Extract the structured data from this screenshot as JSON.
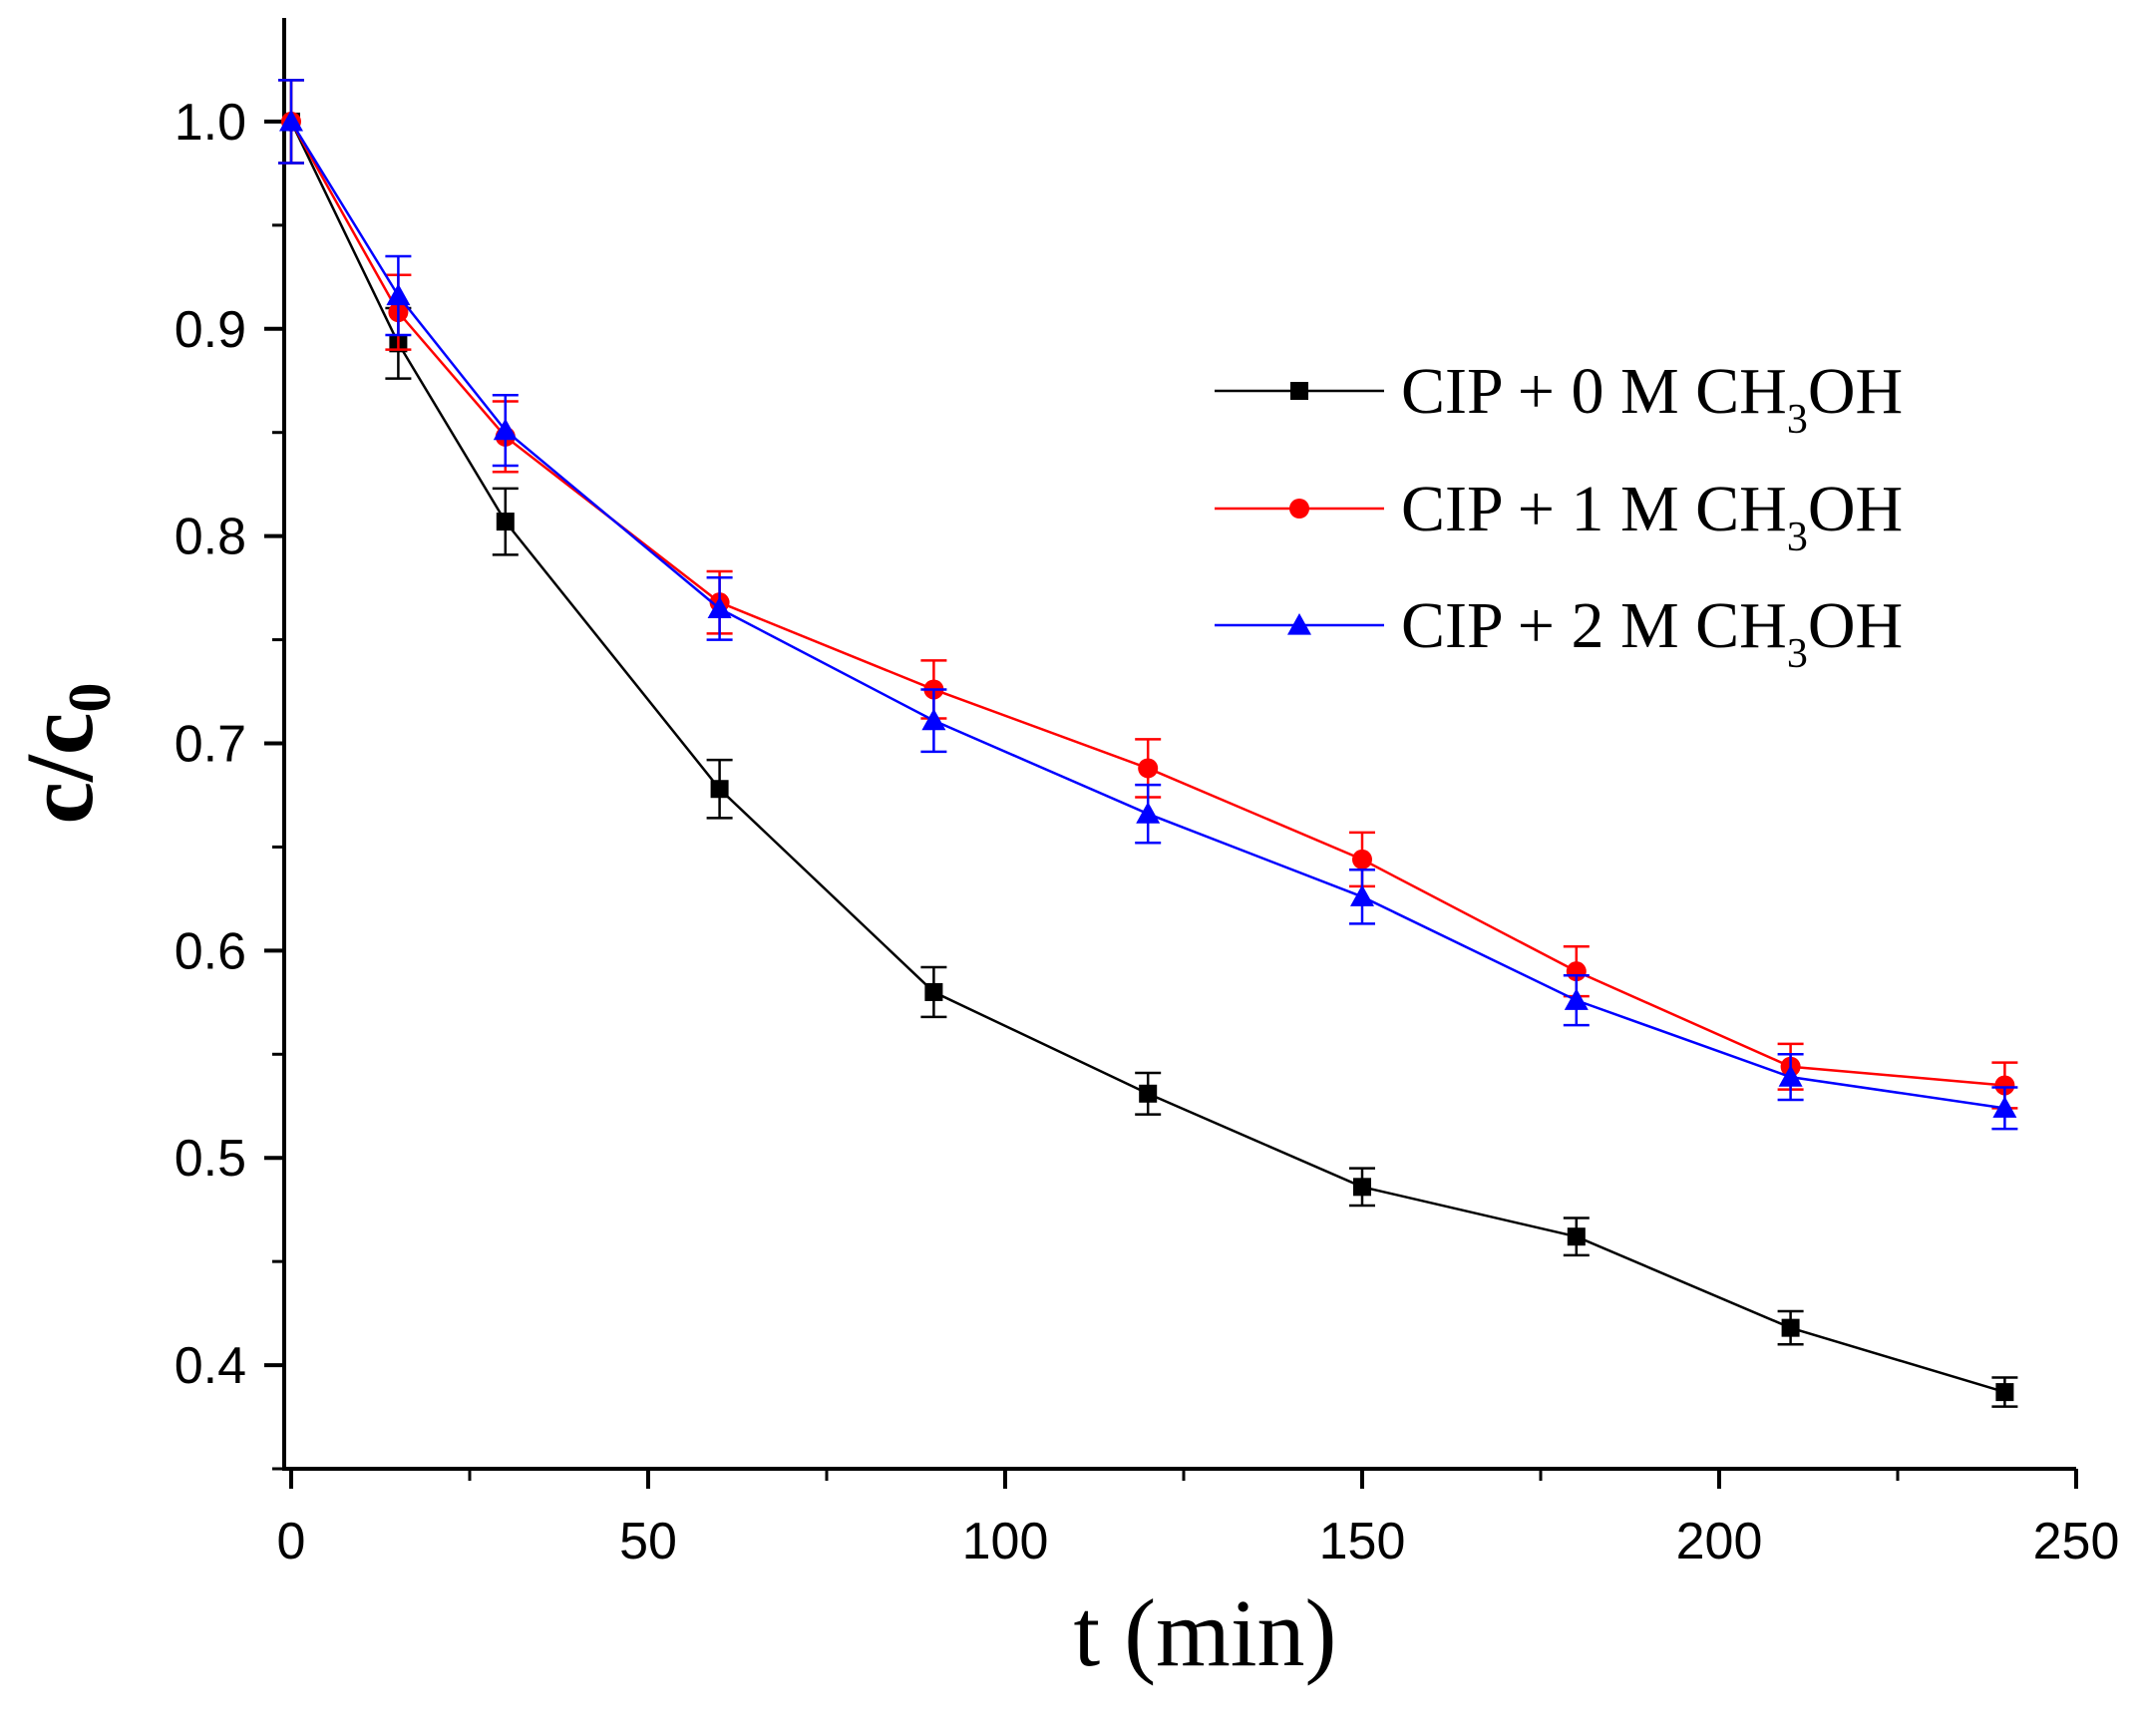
{
  "chart_data": {
    "type": "line",
    "title": "",
    "xlabel": "t (min)",
    "ylabel": {
      "main": "c/c",
      "sub": "0"
    },
    "xlim": [
      0,
      250
    ],
    "ylim": [
      0.35,
      1.05
    ],
    "xticks": [
      0,
      50,
      100,
      150,
      200,
      250
    ],
    "xtick_labels": [
      "0",
      "50",
      "100",
      "150",
      "200",
      "250"
    ],
    "yticks": [
      0.4,
      0.5,
      0.6,
      0.7,
      0.8,
      0.9,
      1.0
    ],
    "ytick_labels": [
      "0.4",
      "0.5",
      "0.6",
      "0.7",
      "0.8",
      "0.9",
      "1.0"
    ],
    "grid": false,
    "legend_position": "upper-right",
    "x": [
      0,
      15,
      30,
      60,
      90,
      120,
      150,
      180,
      210,
      240
    ],
    "series": [
      {
        "name": {
          "prefix": "CIP + 0 M CH",
          "sub": "3",
          "suffix": "OH"
        },
        "color": "#000000",
        "marker": "square",
        "values": [
          1.0,
          0.893,
          0.807,
          0.678,
          0.58,
          0.531,
          0.486,
          0.462,
          0.418,
          0.387
        ],
        "errors": [
          0.02,
          0.017,
          0.016,
          0.014,
          0.012,
          0.01,
          0.009,
          0.009,
          0.008,
          0.007
        ]
      },
      {
        "name": {
          "prefix": "CIP + 1 M CH",
          "sub": "3",
          "suffix": "OH"
        },
        "color": "#ff0000",
        "marker": "circle",
        "values": [
          1.0,
          0.908,
          0.848,
          0.768,
          0.726,
          0.688,
          0.644,
          0.59,
          0.544,
          0.535
        ],
        "errors": [
          0.02,
          0.018,
          0.017,
          0.015,
          0.014,
          0.014,
          0.013,
          0.012,
          0.011,
          0.011
        ]
      },
      {
        "name": {
          "prefix": "CIP + 2 M CH",
          "sub": "3",
          "suffix": "OH"
        },
        "color": "#0000ff",
        "marker": "triangle",
        "values": [
          1.0,
          0.916,
          0.851,
          0.765,
          0.711,
          0.666,
          0.626,
          0.576,
          0.539,
          0.524
        ],
        "errors": [
          0.02,
          0.019,
          0.017,
          0.015,
          0.015,
          0.014,
          0.013,
          0.012,
          0.011,
          0.01
        ]
      }
    ]
  }
}
